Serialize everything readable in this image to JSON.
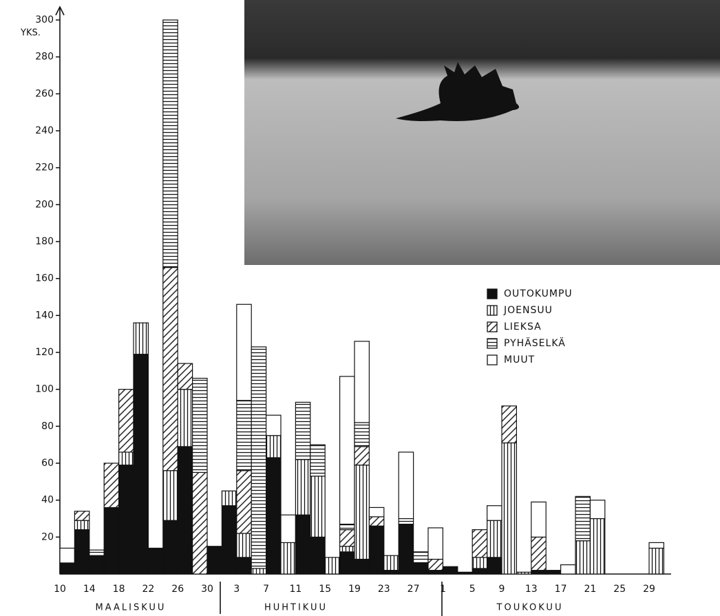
{
  "chart_data": {
    "type": "stacked-bar",
    "y_label": "YKS.",
    "ylim": [
      0,
      300
    ],
    "yticks": [
      20,
      40,
      60,
      80,
      100,
      120,
      140,
      160,
      180,
      200,
      220,
      240,
      260,
      280,
      300
    ],
    "categories": [
      "10",
      null,
      "14",
      null,
      "18",
      null,
      "22",
      null,
      "26",
      null,
      "30",
      null,
      "3",
      null,
      "7",
      null,
      "11",
      null,
      "15",
      null,
      "19",
      null,
      "23",
      null,
      "27",
      null,
      "1",
      null,
      "5",
      null,
      "9",
      null,
      "13",
      null,
      "17",
      null,
      "21",
      null,
      "25",
      null,
      "29"
    ],
    "months": [
      "MAALISKUU",
      "HUHTIKUU",
      "TOUKOKUU"
    ],
    "legend": "right",
    "series": [
      {
        "name": "OUTOKUMPU",
        "color": "#111111",
        "pattern": "solid",
        "values": [
          6,
          24,
          10,
          36,
          59,
          119,
          14,
          29,
          69,
          0,
          15,
          37,
          9,
          0,
          63,
          0,
          32,
          20,
          0,
          12,
          8,
          26,
          2,
          27,
          6,
          2,
          4,
          1,
          3,
          9,
          0,
          0,
          2,
          2,
          0,
          0,
          0,
          0,
          0,
          0,
          0
        ]
      },
      {
        "name": "JOENSUU",
        "color": "#111111",
        "pattern": "vertical",
        "values": [
          0,
          5,
          0,
          0,
          7,
          17,
          0,
          27,
          31,
          0,
          0,
          8,
          13,
          3,
          12,
          17,
          30,
          33,
          9,
          3,
          51,
          0,
          8,
          0,
          0,
          0,
          0,
          0,
          6,
          20,
          71,
          1,
          0,
          0,
          0,
          18,
          30,
          0,
          0,
          0,
          14
        ]
      },
      {
        "name": "LIEKSA",
        "color": "#111111",
        "pattern": "diagonal",
        "values": [
          0,
          5,
          0,
          24,
          34,
          0,
          0,
          110,
          14,
          55,
          0,
          0,
          34,
          0,
          0,
          0,
          0,
          0,
          0,
          9,
          10,
          5,
          0,
          0,
          0,
          6,
          0,
          0,
          15,
          0,
          20,
          0,
          18,
          0,
          0,
          0,
          0,
          0,
          0,
          0,
          0
        ]
      },
      {
        "name": "PYHÄSELKÄ",
        "color": "#111111",
        "pattern": "horizontal",
        "values": [
          0,
          0,
          3,
          0,
          0,
          0,
          0,
          134,
          0,
          51,
          0,
          0,
          38,
          120,
          0,
          0,
          31,
          17,
          0,
          3,
          13,
          0,
          0,
          3,
          6,
          0,
          0,
          0,
          0,
          0,
          0,
          0,
          0,
          0,
          0,
          24,
          0,
          0,
          0,
          0,
          0
        ]
      },
      {
        "name": "MUUT",
        "color": "#111111",
        "pattern": "none",
        "values": [
          8,
          0,
          0,
          0,
          0,
          0,
          0,
          0,
          0,
          0,
          0,
          0,
          52,
          0,
          11,
          15,
          0,
          0,
          0,
          80,
          44,
          5,
          0,
          36,
          0,
          17,
          0,
          0,
          0,
          8,
          0,
          0,
          19,
          0,
          5,
          0,
          10,
          0,
          0,
          0,
          3
        ]
      }
    ]
  }
}
